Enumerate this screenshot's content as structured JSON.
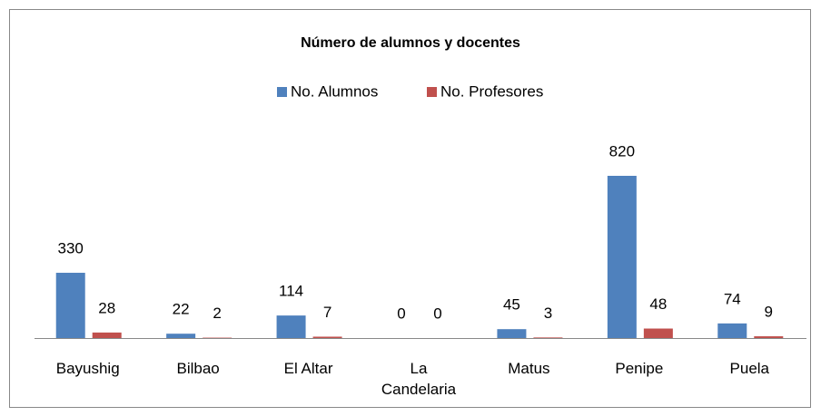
{
  "chart_data": {
    "type": "bar",
    "title": "Número de alumnos y docentes",
    "categories": [
      "Bayushig",
      "Bilbao",
      "El Altar",
      "La Candelaria",
      "Matus",
      "Penipe",
      "Puela"
    ],
    "series": [
      {
        "name": "No. Alumnos",
        "color": "#4f81bd",
        "values": [
          330,
          22,
          114,
          0,
          45,
          820,
          74
        ]
      },
      {
        "name": "No. Profesores",
        "color": "#c0504d",
        "values": [
          28,
          2,
          7,
          0,
          3,
          48,
          9
        ]
      }
    ],
    "legend": "top"
  }
}
